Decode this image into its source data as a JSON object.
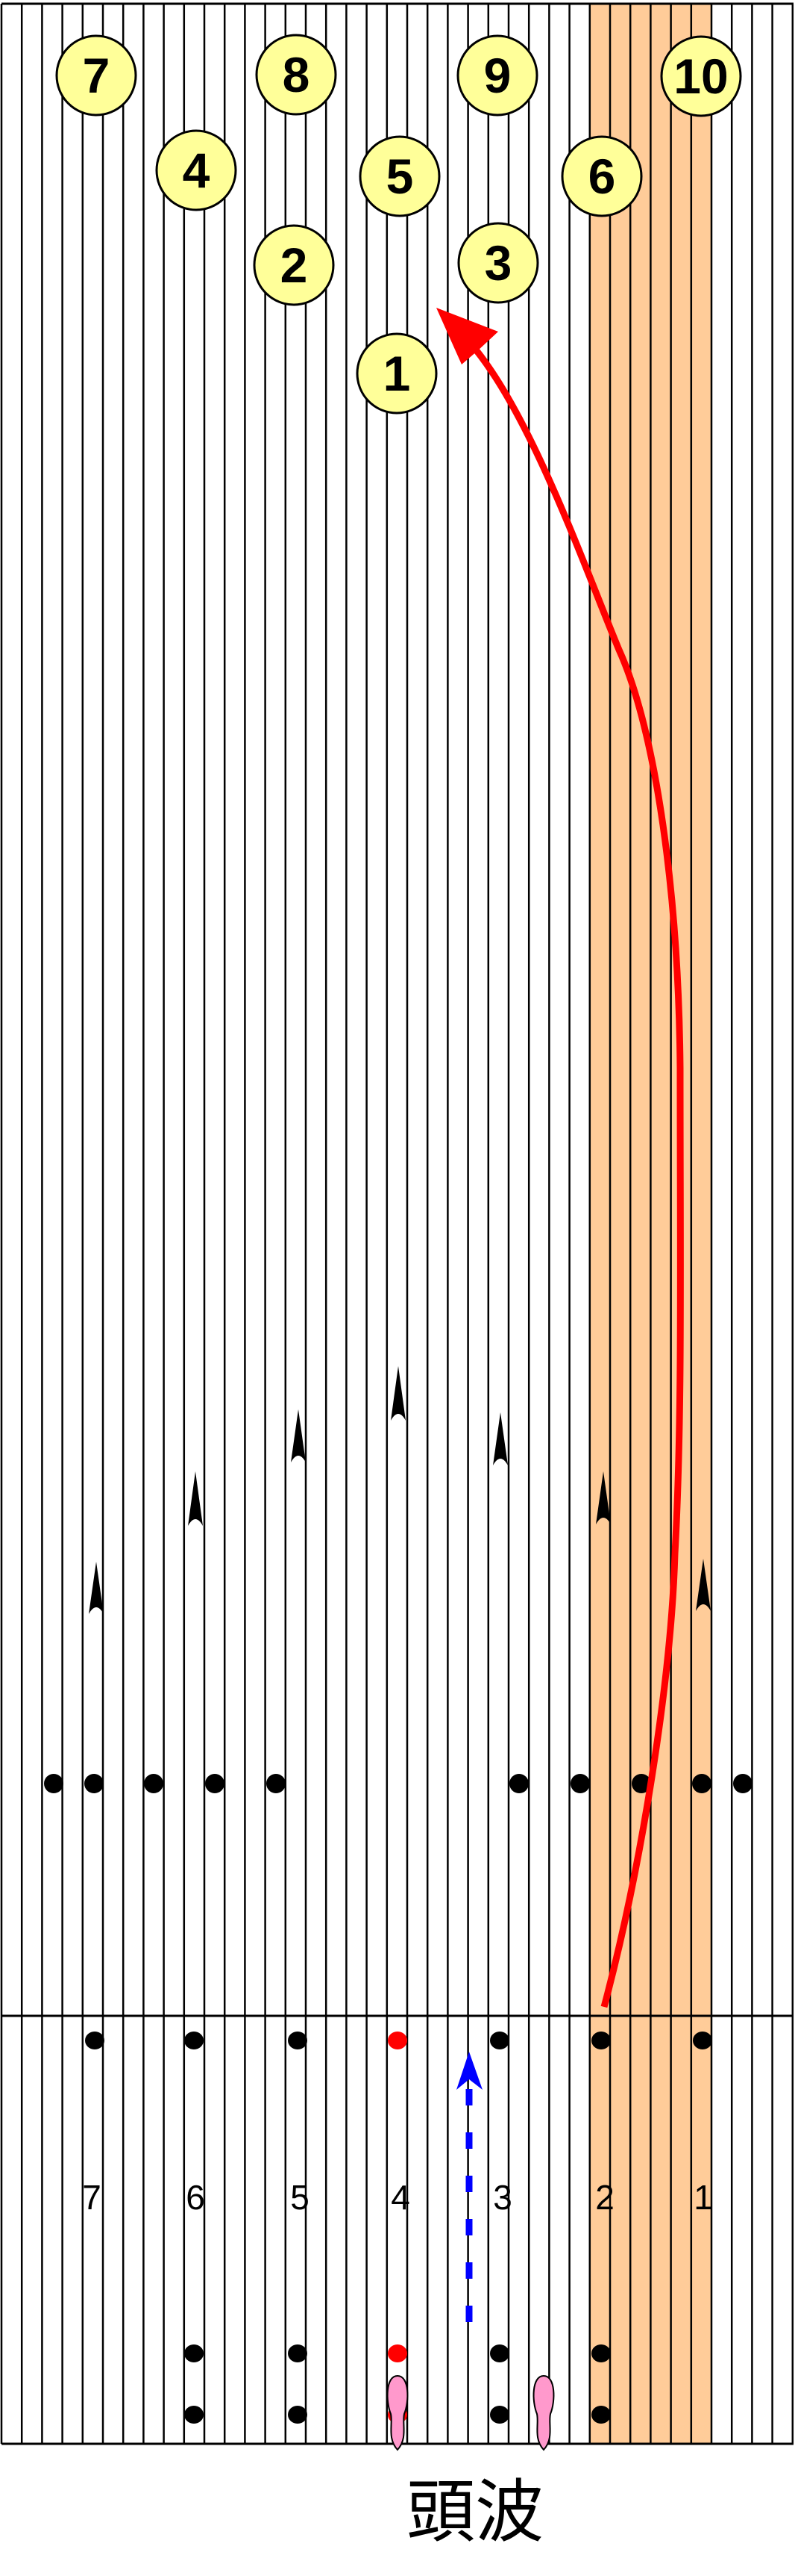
{
  "colors": {
    "lane_bg": "#ffffff",
    "board_line": "#000000",
    "highlight_band": "#ffcc99",
    "pin_fill": "#ffff99",
    "ball_path": "#ff0000",
    "target_path": "#0000ff",
    "marker_dot": "#000000",
    "marker_dot_highlight": "#ff0000",
    "footprint": "#ff99cc"
  },
  "pins": [
    "1",
    "2",
    "3",
    "4",
    "5",
    "6",
    "7",
    "8",
    "9",
    "10"
  ],
  "approach_arrow_labels": [
    "7",
    "6",
    "5",
    "4",
    "3",
    "2",
    "1"
  ],
  "caption": "頭波"
}
